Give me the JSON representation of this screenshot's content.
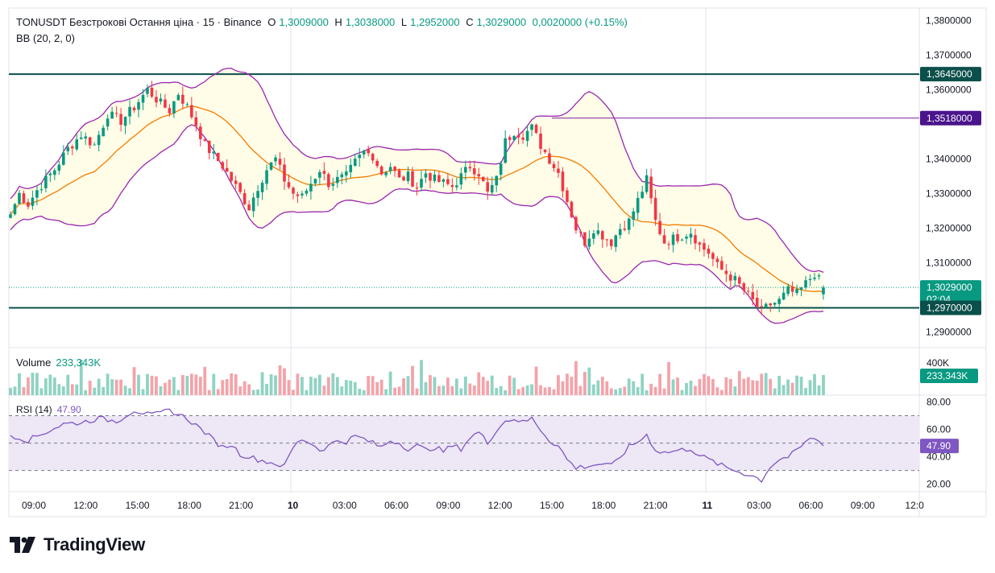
{
  "header": {
    "symbol": "TONUSDT Безстрокові Остання ціна · 15 · Binance",
    "open_label": "O",
    "open": "1,3009000",
    "high_label": "H",
    "high": "1,3038000",
    "low_label": "L",
    "low": "1,2952000",
    "close_label": "C",
    "close": "1,3029000",
    "change": "0,0020000 (+0.15%)",
    "indicator": "BB (20, 2, 0)"
  },
  "volume_legend": {
    "label": "Volume",
    "value": "233,343K"
  },
  "rsi_legend": {
    "label": "RSI (14)",
    "value": "47.90"
  },
  "branding": {
    "name": "TradingView"
  },
  "colors": {
    "up": "#089981",
    "down": "#f23645",
    "upVol": "#8fd3c3",
    "downVol": "#f4a3aa",
    "bbBand": "#9c27b0",
    "bbBasis": "#f57c00",
    "bbFill": "#fffde7",
    "hline": "#0b4f4a",
    "rsi": "#7e57c2",
    "rsiFill": "#ede7f6"
  },
  "chart_data": {
    "type": "candlestick",
    "x_ticks": [
      "09:00",
      "12:00",
      "15:00",
      "18:00",
      "21:00",
      "10",
      "03:00",
      "06:00",
      "09:00",
      "12:00",
      "15:00",
      "18:00",
      "21:00",
      "11",
      "03:00",
      "06:00",
      "09:00",
      "12:0"
    ],
    "y_ticks": [
      "1,3800000",
      "1,3700000",
      "1,3600000",
      "1,3400000",
      "1,3300000",
      "1,3200000",
      "1,3100000",
      "1,2900000"
    ],
    "y_tick_values": [
      1.38,
      1.37,
      1.36,
      1.34,
      1.33,
      1.32,
      1.31,
      1.29
    ],
    "ylim": [
      1.2855,
      1.3836
    ],
    "price_labels": [
      {
        "value": 1.3645,
        "text": "1,3645000",
        "color": "#0b4f4a"
      },
      {
        "value": 1.3518,
        "text": "1,3518000",
        "color": "#4a148c"
      },
      {
        "value": 1.3029,
        "text": "1,3029000",
        "sub": "02:04",
        "color": "#089981"
      },
      {
        "value": 1.297,
        "text": "1,2970000",
        "color": "#0b4f4a"
      }
    ],
    "horizontal_lines": [
      1.3645,
      1.297
    ],
    "ray_line": {
      "value": 1.3518,
      "from_x_index": 5.2
    },
    "key_points": [
      [
        0,
        1.324
      ],
      [
        2,
        1.33
      ],
      [
        4,
        1.327
      ],
      [
        6,
        1.331
      ],
      [
        8,
        1.334
      ],
      [
        10,
        1.337
      ],
      [
        13,
        1.343
      ],
      [
        16,
        1.347
      ],
      [
        19,
        1.344
      ],
      [
        22,
        1.353
      ],
      [
        25,
        1.351
      ],
      [
        28,
        1.355
      ],
      [
        31,
        1.36
      ],
      [
        34,
        1.356
      ],
      [
        36,
        1.354
      ],
      [
        38,
        1.359
      ],
      [
        40,
        1.355
      ],
      [
        42,
        1.35
      ],
      [
        44,
        1.344
      ],
      [
        46,
        1.341
      ],
      [
        48,
        1.338
      ],
      [
        50,
        1.334
      ],
      [
        52,
        1.33
      ],
      [
        54,
        1.326
      ],
      [
        56,
        1.332
      ],
      [
        58,
        1.337
      ],
      [
        60,
        1.34
      ],
      [
        62,
        1.334
      ],
      [
        64,
        1.33
      ],
      [
        66,
        1.329
      ],
      [
        68,
        1.333
      ],
      [
        70,
        1.337
      ],
      [
        72,
        1.333
      ],
      [
        74,
        1.334
      ],
      [
        76,
        1.335
      ],
      [
        78,
        1.339
      ],
      [
        80,
        1.342
      ],
      [
        82,
        1.341
      ],
      [
        84,
        1.336
      ],
      [
        86,
        1.338
      ],
      [
        88,
        1.334
      ],
      [
        90,
        1.335
      ],
      [
        92,
        1.332
      ],
      [
        94,
        1.336
      ],
      [
        96,
        1.334
      ],
      [
        98,
        1.333
      ],
      [
        100,
        1.332
      ],
      [
        102,
        1.335
      ],
      [
        104,
        1.338
      ],
      [
        106,
        1.336
      ],
      [
        108,
        1.33
      ],
      [
        110,
        1.334
      ],
      [
        112,
        1.345
      ],
      [
        114,
        1.348
      ],
      [
        116,
        1.347
      ],
      [
        118,
        1.349
      ],
      [
        120,
        1.344
      ],
      [
        122,
        1.34
      ],
      [
        124,
        1.336
      ],
      [
        126,
        1.328
      ],
      [
        128,
        1.32
      ],
      [
        130,
        1.316
      ],
      [
        132,
        1.32
      ],
      [
        134,
        1.318
      ],
      [
        136,
        1.316
      ],
      [
        138,
        1.32
      ],
      [
        140,
        1.322
      ],
      [
        142,
        1.328
      ],
      [
        144,
        1.334
      ],
      [
        146,
        1.322
      ],
      [
        148,
        1.316
      ],
      [
        150,
        1.317
      ],
      [
        152,
        1.318
      ],
      [
        154,
        1.319
      ],
      [
        156,
        1.315
      ],
      [
        158,
        1.313
      ],
      [
        160,
        1.309
      ],
      [
        162,
        1.307
      ],
      [
        164,
        1.305
      ],
      [
        166,
        1.302
      ],
      [
        168,
        1.299
      ],
      [
        170,
        1.296
      ],
      [
        172,
        1.298
      ],
      [
        174,
        1.299
      ],
      [
        176,
        1.302
      ],
      [
        178,
        1.301
      ],
      [
        180,
        1.304
      ],
      [
        182,
        1.307
      ],
      [
        184,
        1.3029
      ]
    ],
    "rsi_ticks": [
      "80.00",
      "60.00",
      "40.00",
      "20.00"
    ],
    "rsi_tick_values": [
      80,
      60,
      40,
      20
    ],
    "rsi_bands": [
      70,
      50,
      30
    ],
    "rsi_current": 47.9,
    "rsi_key_points": [
      [
        0,
        56
      ],
      [
        4,
        52
      ],
      [
        8,
        58
      ],
      [
        12,
        64
      ],
      [
        16,
        65
      ],
      [
        20,
        68
      ],
      [
        24,
        66
      ],
      [
        28,
        74
      ],
      [
        32,
        70
      ],
      [
        36,
        74
      ],
      [
        40,
        68
      ],
      [
        44,
        58
      ],
      [
        46,
        52
      ],
      [
        48,
        47
      ],
      [
        50,
        49
      ],
      [
        52,
        42
      ],
      [
        56,
        38
      ],
      [
        60,
        35
      ],
      [
        62,
        33
      ],
      [
        64,
        47
      ],
      [
        66,
        53
      ],
      [
        68,
        50
      ],
      [
        70,
        45
      ],
      [
        72,
        48
      ],
      [
        74,
        52
      ],
      [
        76,
        51
      ],
      [
        78,
        55
      ],
      [
        80,
        53
      ],
      [
        82,
        50
      ],
      [
        84,
        47
      ],
      [
        86,
        52
      ],
      [
        88,
        50
      ],
      [
        90,
        46
      ],
      [
        92,
        48
      ],
      [
        94,
        45
      ],
      [
        96,
        47
      ],
      [
        98,
        44
      ],
      [
        100,
        48
      ],
      [
        102,
        46
      ],
      [
        104,
        54
      ],
      [
        106,
        58
      ],
      [
        108,
        50
      ],
      [
        110,
        60
      ],
      [
        112,
        66
      ],
      [
        114,
        68
      ],
      [
        116,
        65
      ],
      [
        118,
        68
      ],
      [
        120,
        60
      ],
      [
        122,
        52
      ],
      [
        124,
        48
      ],
      [
        126,
        38
      ],
      [
        128,
        32
      ],
      [
        130,
        33
      ],
      [
        132,
        34
      ],
      [
        134,
        35
      ],
      [
        136,
        33
      ],
      [
        138,
        40
      ],
      [
        140,
        47
      ],
      [
        142,
        51
      ],
      [
        144,
        56
      ],
      [
        146,
        45
      ],
      [
        148,
        43
      ],
      [
        150,
        44
      ],
      [
        152,
        45
      ],
      [
        154,
        46
      ],
      [
        156,
        41
      ],
      [
        158,
        38
      ],
      [
        160,
        35
      ],
      [
        162,
        32
      ],
      [
        164,
        30
      ],
      [
        166,
        28
      ],
      [
        168,
        26
      ],
      [
        170,
        23
      ],
      [
        172,
        33
      ],
      [
        174,
        38
      ],
      [
        176,
        40
      ],
      [
        178,
        44
      ],
      [
        180,
        51
      ],
      [
        182,
        54
      ],
      [
        184,
        47.9
      ]
    ],
    "volume_axis_label": "400K",
    "volume_current": "233,343K"
  }
}
